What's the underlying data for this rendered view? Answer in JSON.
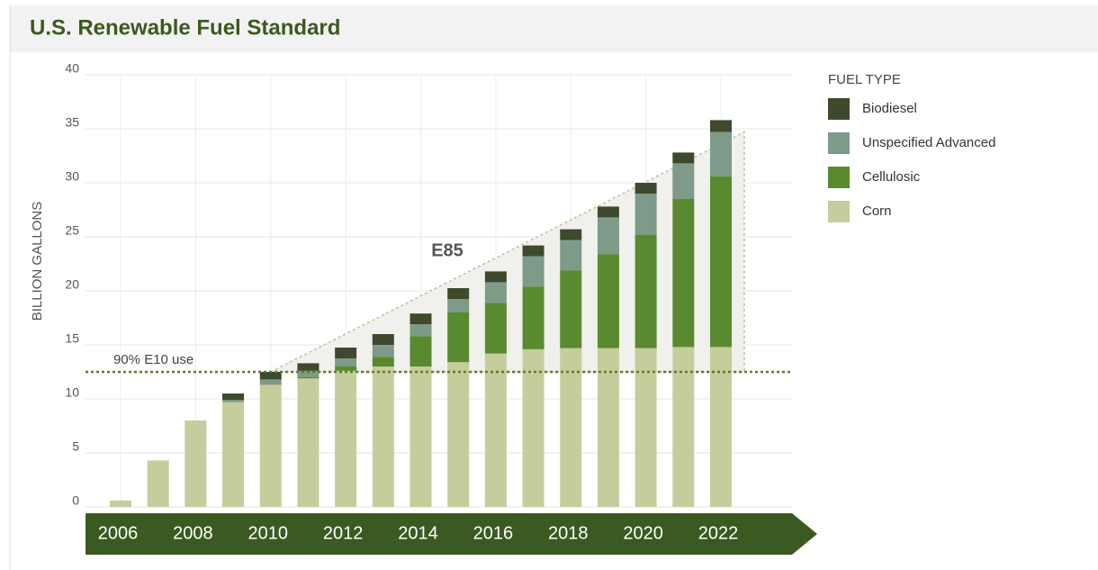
{
  "chart_data": {
    "type": "stacked_bar",
    "title": "U.S. Renewable Fuel Standard",
    "ylabel": "BILLION GALLONS",
    "legend_title": "FUEL TYPE",
    "legend": "right",
    "grid": true,
    "categories": [
      "2006",
      null,
      "2008",
      null,
      "2010",
      null,
      "2012",
      null,
      "2014",
      null,
      "2016",
      null,
      "2018",
      null,
      "2020",
      null,
      "2022"
    ],
    "series": [
      {
        "name": "Biodiesel",
        "color": "#3e4a2b",
        "values": [
          0,
          0,
          0,
          0.6,
          0.7,
          0.7,
          1.0,
          1.0,
          1.0,
          1.0,
          1.0,
          1.0,
          1.0,
          1.0,
          1.0,
          1.0,
          1.1
        ]
      },
      {
        "name": "Unspecified Advanced",
        "color": "#7e9a88",
        "values": [
          0,
          0,
          0,
          0.2,
          0.5,
          0.6,
          0.75,
          1.1,
          1.1,
          1.25,
          1.9,
          2.8,
          2.8,
          3.4,
          3.8,
          3.3,
          4.1
        ]
      },
      {
        "name": "Cellulosic",
        "color": "#5a8a2f",
        "values": [
          0,
          0,
          0,
          0,
          0,
          0.1,
          0.4,
          0.9,
          2.8,
          4.6,
          4.7,
          5.8,
          7.2,
          8.7,
          10.5,
          13.7,
          15.8
        ]
      },
      {
        "name": "Corn",
        "color": "#c5cd9c",
        "values": [
          0.6,
          4.3,
          8.0,
          9.7,
          11.3,
          11.9,
          12.6,
          13.0,
          13.0,
          13.4,
          14.2,
          14.6,
          14.7,
          14.7,
          14.7,
          14.8,
          14.8
        ]
      }
    ],
    "ylim": [
      0,
      40
    ],
    "yticks": [
      0,
      5,
      10,
      15,
      20,
      25,
      30,
      35,
      40
    ],
    "annotations": [
      {
        "text": "E85"
      },
      {
        "text": "90% E10 use",
        "value": 12.5
      }
    ]
  }
}
